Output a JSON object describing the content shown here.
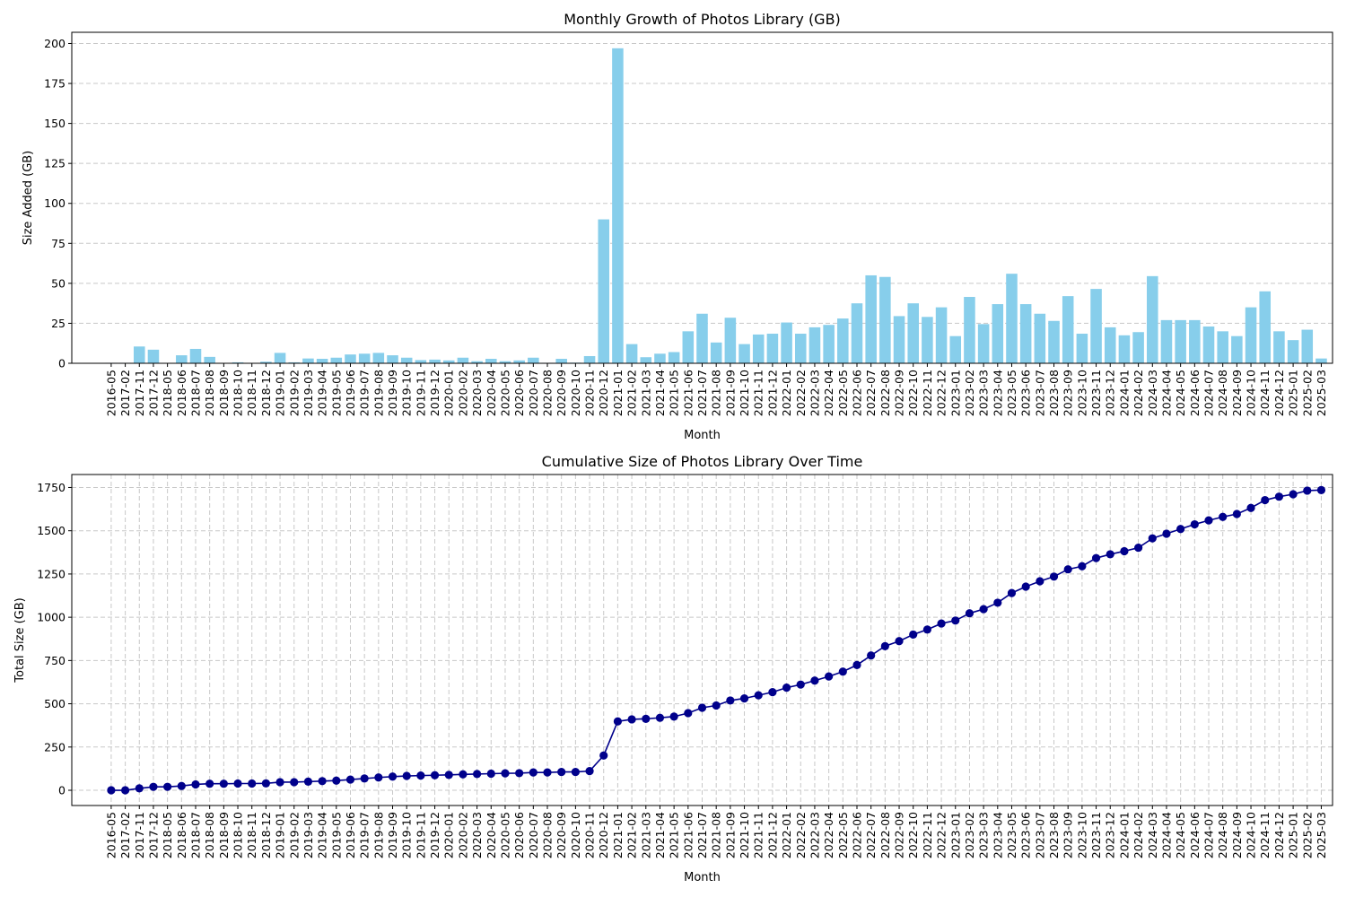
{
  "chart_data": [
    {
      "type": "bar",
      "title": "Monthly Growth of Photos Library (GB)",
      "xlabel": "Month",
      "ylabel": "Size Added (GB)",
      "ylim": [
        0,
        207
      ],
      "yticks": [
        0,
        25,
        50,
        75,
        100,
        125,
        150,
        175,
        200
      ],
      "grid": "y",
      "bar_color": "#87ceeb",
      "categories": [
        "2016-05",
        "2017-02",
        "2017-11",
        "2017-12",
        "2018-05",
        "2018-06",
        "2018-07",
        "2018-08",
        "2018-09",
        "2018-10",
        "2018-11",
        "2018-12",
        "2019-01",
        "2019-02",
        "2019-03",
        "2019-04",
        "2019-05",
        "2019-06",
        "2019-07",
        "2019-08",
        "2019-09",
        "2019-10",
        "2019-11",
        "2019-12",
        "2020-01",
        "2020-02",
        "2020-03",
        "2020-04",
        "2020-05",
        "2020-06",
        "2020-07",
        "2020-08",
        "2020-09",
        "2020-10",
        "2020-11",
        "2020-12",
        "2021-01",
        "2021-02",
        "2021-03",
        "2021-04",
        "2021-05",
        "2021-06",
        "2021-07",
        "2021-08",
        "2021-09",
        "2021-10",
        "2021-11",
        "2021-12",
        "2022-01",
        "2022-02",
        "2022-03",
        "2022-04",
        "2022-05",
        "2022-06",
        "2022-07",
        "2022-08",
        "2022-09",
        "2022-10",
        "2022-11",
        "2022-12",
        "2023-01",
        "2023-02",
        "2023-03",
        "2023-04",
        "2023-05",
        "2023-06",
        "2023-07",
        "2023-08",
        "2023-09",
        "2023-10",
        "2023-11",
        "2023-12",
        "2024-01",
        "2024-02",
        "2024-03",
        "2024-04",
        "2024-05",
        "2024-06",
        "2024-07",
        "2024-08",
        "2024-09",
        "2024-10",
        "2024-11",
        "2024-12",
        "2025-01",
        "2025-02",
        "2025-03"
      ],
      "values": [
        0.3,
        0.3,
        10.5,
        8.5,
        0.2,
        5.0,
        9.0,
        4.0,
        0.2,
        0.6,
        0.2,
        1.0,
        6.5,
        0.6,
        3.0,
        2.8,
        3.5,
        5.5,
        6.0,
        6.5,
        5.0,
        3.5,
        2.0,
        2.3,
        1.8,
        3.5,
        1.3,
        2.8,
        1.3,
        1.8,
        3.5,
        0.3,
        2.8,
        0.4,
        4.5,
        90.0,
        197.0,
        12.0,
        3.8,
        6.0,
        7.0,
        20.0,
        31.0,
        13.0,
        28.5,
        12.0,
        18.0,
        18.5,
        25.5,
        18.5,
        22.5,
        24.0,
        28.0,
        37.5,
        55.0,
        54.0,
        29.5,
        37.5,
        29.0,
        35.0,
        17.0,
        41.5,
        24.5,
        37.0,
        56.0,
        37.0,
        31.0,
        26.5,
        42.0,
        18.5,
        46.5,
        22.5,
        17.5,
        19.5,
        54.5,
        27.0,
        27.0,
        27.0,
        23.0,
        20.0,
        17.0,
        35.0,
        45.0,
        20.0,
        14.5,
        21.0,
        3.0
      ]
    },
    {
      "type": "line",
      "title": "Cumulative Size of Photos Library Over Time",
      "xlabel": "Month",
      "ylabel": "Total Size (GB)",
      "ylim": [
        -88,
        1825
      ],
      "yticks": [
        0,
        250,
        500,
        750,
        1000,
        1250,
        1500,
        1750
      ],
      "grid": "both",
      "line_color": "#00008b",
      "marker": "circle",
      "x": [
        "2016-05",
        "2017-02",
        "2017-11",
        "2017-12",
        "2018-05",
        "2018-06",
        "2018-07",
        "2018-08",
        "2018-09",
        "2018-10",
        "2018-11",
        "2018-12",
        "2019-01",
        "2019-02",
        "2019-03",
        "2019-04",
        "2019-05",
        "2019-06",
        "2019-07",
        "2019-08",
        "2019-09",
        "2019-10",
        "2019-11",
        "2019-12",
        "2020-01",
        "2020-02",
        "2020-03",
        "2020-04",
        "2020-05",
        "2020-06",
        "2020-07",
        "2020-08",
        "2020-09",
        "2020-10",
        "2020-11",
        "2020-12",
        "2021-01",
        "2021-02",
        "2021-03",
        "2021-04",
        "2021-05",
        "2021-06",
        "2021-07",
        "2021-08",
        "2021-09",
        "2021-10",
        "2021-11",
        "2021-12",
        "2022-01",
        "2022-02",
        "2022-03",
        "2022-04",
        "2022-05",
        "2022-06",
        "2022-07",
        "2022-08",
        "2022-09",
        "2022-10",
        "2022-11",
        "2022-12",
        "2023-01",
        "2023-02",
        "2023-03",
        "2023-04",
        "2023-05",
        "2023-06",
        "2023-07",
        "2023-08",
        "2023-09",
        "2023-10",
        "2023-11",
        "2023-12",
        "2024-01",
        "2024-02",
        "2024-03",
        "2024-04",
        "2024-05",
        "2024-06",
        "2024-07",
        "2024-08",
        "2024-09",
        "2024-10",
        "2024-11",
        "2024-12",
        "2025-01",
        "2025-02",
        "2025-03"
      ],
      "values": [
        0,
        0,
        11,
        20,
        20,
        25,
        34,
        38,
        38,
        39,
        39,
        40,
        47,
        47,
        50,
        53,
        56,
        62,
        68,
        74,
        79,
        83,
        85,
        87,
        89,
        92,
        94,
        96,
        98,
        99,
        103,
        103,
        106,
        106,
        111,
        201,
        398,
        410,
        413,
        419,
        426,
        446,
        477,
        490,
        519,
        531,
        549,
        567,
        593,
        611,
        634,
        658,
        686,
        724,
        779,
        833,
        862,
        900,
        929,
        964,
        981,
        1023,
        1047,
        1084,
        1140,
        1177,
        1208,
        1235,
        1277,
        1295,
        1342,
        1364,
        1382,
        1402,
        1456,
        1483,
        1510,
        1537,
        1560,
        1580,
        1597,
        1632,
        1677,
        1697,
        1711,
        1732,
        1735
      ]
    }
  ]
}
